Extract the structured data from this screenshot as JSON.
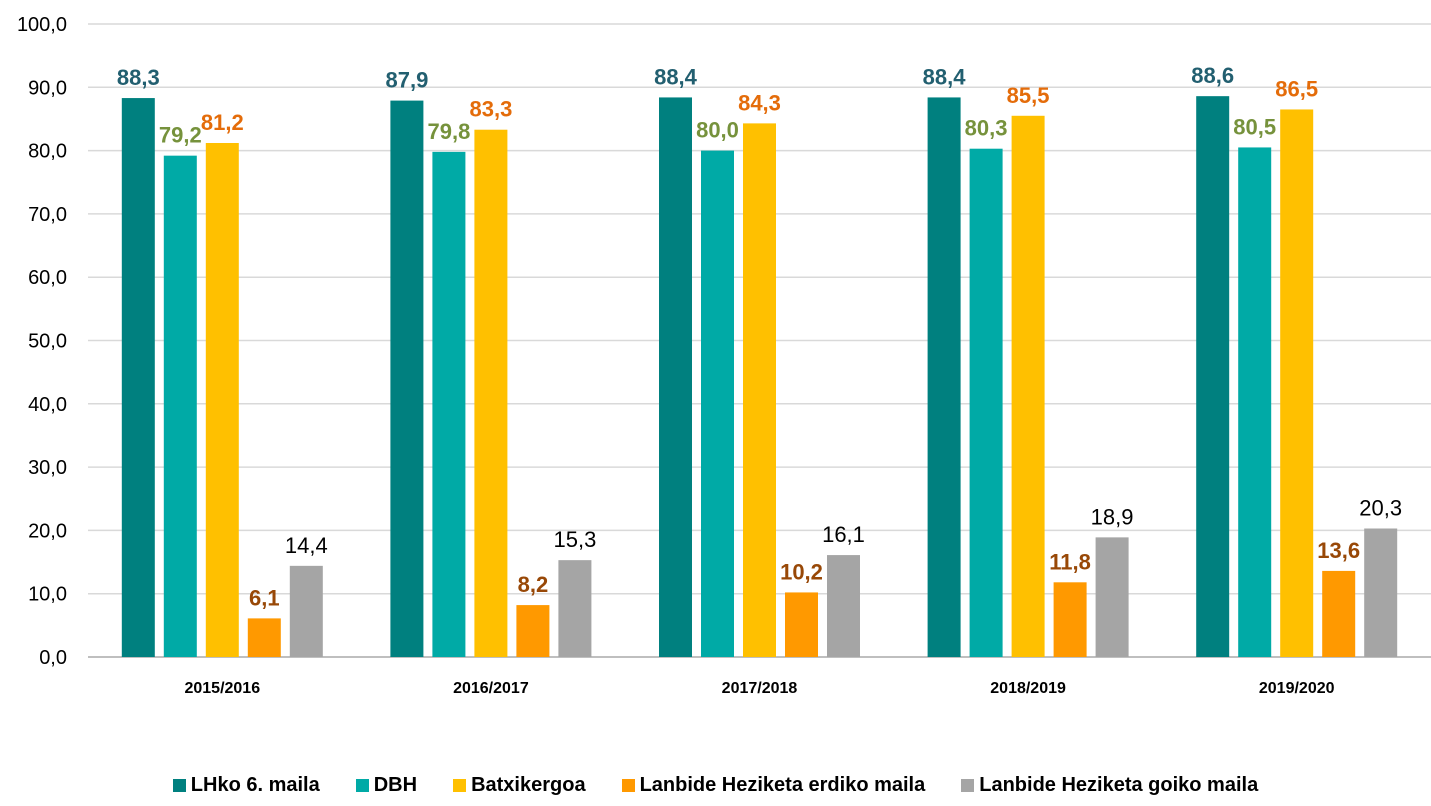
{
  "chart_data": {
    "type": "bar",
    "title": "",
    "xlabel": "",
    "ylabel": "",
    "ylim": [
      0,
      100
    ],
    "yticks": [
      "0,0",
      "10,0",
      "20,0",
      "30,0",
      "40,0",
      "50,0",
      "60,0",
      "70,0",
      "80,0",
      "90,0",
      "100,0"
    ],
    "grid": true,
    "legend_position": "bottom",
    "categories": [
      "2015/2016",
      "2016/2017",
      "2017/2018",
      "2018/2019",
      "2019/2020"
    ],
    "series": [
      {
        "name": "LHko 6. maila",
        "color": "#00807f",
        "label_color": "#225f70",
        "label_bold": true,
        "values": [
          88.3,
          87.9,
          88.4,
          88.4,
          88.6
        ],
        "labels": [
          "88,3",
          "87,9",
          "88,4",
          "88,4",
          "88,6"
        ]
      },
      {
        "name": "DBH",
        "color": "#00aaa6",
        "label_color": "#76923c",
        "label_bold": true,
        "values": [
          79.2,
          79.8,
          80.0,
          80.3,
          80.5
        ],
        "labels": [
          "79,2",
          "79,8",
          "80,0",
          "80,3",
          "80,5"
        ]
      },
      {
        "name": "Batxikergoa",
        "color": "#ffc000",
        "label_color": "#e46c0a",
        "label_bold": true,
        "values": [
          81.2,
          83.3,
          84.3,
          85.5,
          86.5
        ],
        "labels": [
          "81,2",
          "83,3",
          "84,3",
          "85,5",
          "86,5"
        ]
      },
      {
        "name": "Lanbide Heziketa erdiko maila",
        "color": "#ff9900",
        "label_color": "#984807",
        "label_bold": true,
        "values": [
          6.1,
          8.2,
          10.2,
          11.8,
          13.6
        ],
        "labels": [
          "6,1",
          "8,2",
          "10,2",
          "11,8",
          "13,6"
        ]
      },
      {
        "name": "Lanbide Heziketa goiko maila",
        "color": "#a5a5a5",
        "label_color": "#000000",
        "label_bold": false,
        "values": [
          14.4,
          15.3,
          16.1,
          18.9,
          20.3
        ],
        "labels": [
          "14,4",
          "15,3",
          "16,1",
          "18,9",
          "20,3"
        ]
      }
    ]
  }
}
